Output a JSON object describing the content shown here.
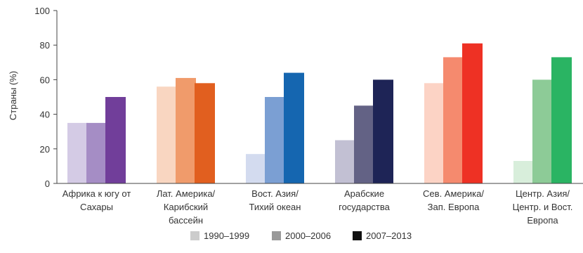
{
  "chart_data": {
    "type": "bar",
    "ylabel": "Страны (%)",
    "ylim": [
      0,
      100
    ],
    "yticks": [
      0,
      20,
      40,
      60,
      80,
      100
    ],
    "grid": false,
    "legend_position": "bottom",
    "categories": [
      [
        "Африка к югу от",
        "Сахары"
      ],
      [
        "Лат. Америка/",
        "Карибский",
        "бассейн"
      ],
      [
        "Вост. Азия/",
        "Тихий океан"
      ],
      [
        "Арабские",
        "государства"
      ],
      [
        "Сев. Америка/",
        "Зап. Европа"
      ],
      [
        "Центр. Азия/",
        "Центр. и Вост.",
        "Европа"
      ]
    ],
    "series": [
      {
        "name": "1990–1999",
        "values": [
          35,
          56,
          17,
          25,
          58,
          13
        ]
      },
      {
        "name": "2000–2006",
        "values": [
          35,
          61,
          50,
          45,
          73,
          60
        ]
      },
      {
        "name": "2007–2013",
        "values": [
          50,
          58,
          64,
          60,
          81,
          73
        ]
      }
    ],
    "legend_colors": [
      "#cccccc",
      "#999999",
      "#111111"
    ],
    "bar_colors": [
      [
        "#d4cbe5",
        "#a58dc5",
        "#713e9a"
      ],
      [
        "#f9d6c1",
        "#f09b6b",
        "#e15f1f"
      ],
      [
        "#d3dbef",
        "#7b9fd3",
        "#1566b0"
      ],
      [
        "#c2c0d3",
        "#636285",
        "#1e2456"
      ],
      [
        "#fcd3c5",
        "#f58a6e",
        "#ee3124"
      ],
      [
        "#d8eedb",
        "#8dcb97",
        "#2ab463"
      ]
    ]
  }
}
